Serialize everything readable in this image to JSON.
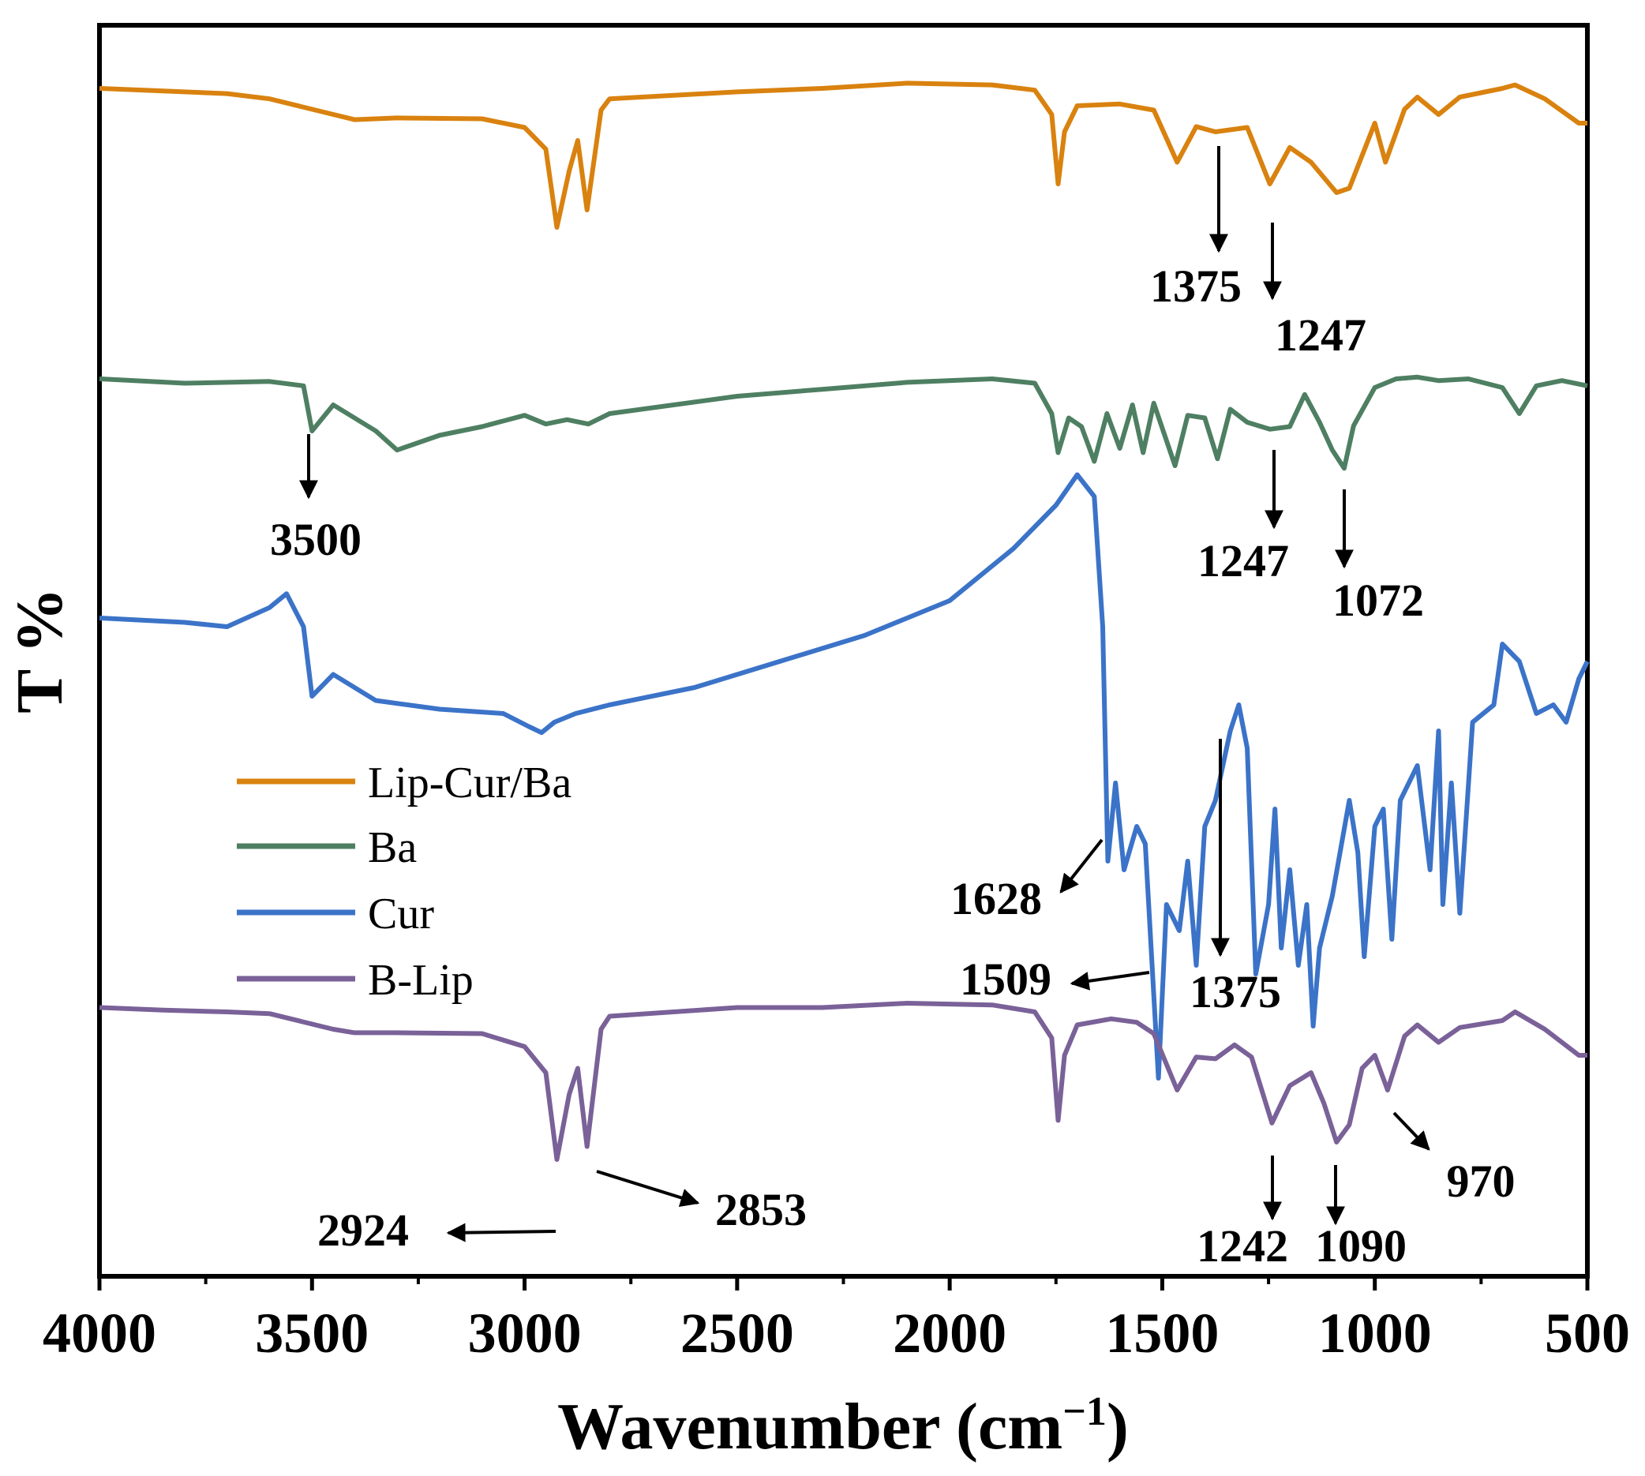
{
  "chart_data": {
    "type": "line",
    "title": "",
    "xlabel": "Wavenumber (cm",
    "xlabel_sup": "−1",
    "xlabel_close": ")",
    "ylabel": "T %",
    "xlim": [
      4000,
      500
    ],
    "x_ticks": [
      4000,
      3500,
      3000,
      2500,
      2000,
      1500,
      1000,
      500
    ],
    "grid": false,
    "legend_position": "middle-left",
    "series": [
      {
        "name": "Lip-Cur/Ba",
        "color": "#D9820F",
        "points": [
          [
            4000,
            80
          ],
          [
            3850,
            77
          ],
          [
            3700,
            74
          ],
          [
            3600,
            68
          ],
          [
            3450,
            50
          ],
          [
            3400,
            44
          ],
          [
            3300,
            46
          ],
          [
            3100,
            45
          ],
          [
            3000,
            35
          ],
          [
            2950,
            10
          ],
          [
            2924,
            -80
          ],
          [
            2895,
            -15
          ],
          [
            2875,
            20
          ],
          [
            2853,
            -60
          ],
          [
            2820,
            55
          ],
          [
            2800,
            68
          ],
          [
            2500,
            76
          ],
          [
            2300,
            80
          ],
          [
            2100,
            86
          ],
          [
            1900,
            84
          ],
          [
            1800,
            78
          ],
          [
            1760,
            50
          ],
          [
            1745,
            -30
          ],
          [
            1730,
            30
          ],
          [
            1700,
            60
          ],
          [
            1600,
            62
          ],
          [
            1520,
            55
          ],
          [
            1465,
            -5
          ],
          [
            1420,
            36
          ],
          [
            1375,
            30
          ],
          [
            1300,
            35
          ],
          [
            1247,
            -30
          ],
          [
            1200,
            12
          ],
          [
            1150,
            -5
          ],
          [
            1090,
            -40
          ],
          [
            1060,
            -35
          ],
          [
            1000,
            40
          ],
          [
            975,
            -5
          ],
          [
            930,
            56
          ],
          [
            900,
            70
          ],
          [
            850,
            50
          ],
          [
            800,
            70
          ],
          [
            700,
            80
          ],
          [
            670,
            84
          ],
          [
            600,
            68
          ],
          [
            520,
            40
          ],
          [
            500,
            40
          ]
        ]
      },
      {
        "name": "Ba",
        "color": "#4E7F62",
        "points": [
          [
            4000,
            100
          ],
          [
            3800,
            95
          ],
          [
            3600,
            97
          ],
          [
            3520,
            92
          ],
          [
            3500,
            40
          ],
          [
            3450,
            70
          ],
          [
            3350,
            40
          ],
          [
            3300,
            18
          ],
          [
            3200,
            35
          ],
          [
            3100,
            45
          ],
          [
            3000,
            58
          ],
          [
            2950,
            48
          ],
          [
            2900,
            53
          ],
          [
            2850,
            48
          ],
          [
            2800,
            60
          ],
          [
            2500,
            80
          ],
          [
            2300,
            88
          ],
          [
            2100,
            96
          ],
          [
            1900,
            100
          ],
          [
            1800,
            95
          ],
          [
            1760,
            60
          ],
          [
            1745,
            15
          ],
          [
            1720,
            55
          ],
          [
            1690,
            45
          ],
          [
            1660,
            5
          ],
          [
            1630,
            60
          ],
          [
            1600,
            20
          ],
          [
            1570,
            70
          ],
          [
            1545,
            15
          ],
          [
            1520,
            72
          ],
          [
            1470,
            0
          ],
          [
            1440,
            58
          ],
          [
            1400,
            55
          ],
          [
            1370,
            8
          ],
          [
            1340,
            65
          ],
          [
            1300,
            50
          ],
          [
            1247,
            42
          ],
          [
            1200,
            45
          ],
          [
            1165,
            82
          ],
          [
            1130,
            50
          ],
          [
            1100,
            18
          ],
          [
            1072,
            -3
          ],
          [
            1050,
            46
          ],
          [
            1000,
            90
          ],
          [
            950,
            100
          ],
          [
            900,
            102
          ],
          [
            850,
            98
          ],
          [
            780,
            100
          ],
          [
            700,
            90
          ],
          [
            660,
            60
          ],
          [
            620,
            92
          ],
          [
            560,
            98
          ],
          [
            500,
            92
          ]
        ]
      },
      {
        "name": "Cur",
        "color": "#3B73C8",
        "points": [
          [
            4000,
            70
          ],
          [
            3800,
            65
          ],
          [
            3700,
            60
          ],
          [
            3600,
            82
          ],
          [
            3560,
            98
          ],
          [
            3520,
            60
          ],
          [
            3500,
            -20
          ],
          [
            3450,
            5
          ],
          [
            3350,
            -25
          ],
          [
            3200,
            -35
          ],
          [
            3050,
            -40
          ],
          [
            2990,
            -55
          ],
          [
            2960,
            -62
          ],
          [
            2930,
            -50
          ],
          [
            2880,
            -40
          ],
          [
            2800,
            -30
          ],
          [
            2600,
            -10
          ],
          [
            2400,
            20
          ],
          [
            2200,
            50
          ],
          [
            2000,
            90
          ],
          [
            1850,
            150
          ],
          [
            1750,
            200
          ],
          [
            1700,
            235
          ],
          [
            1660,
            210
          ],
          [
            1640,
            60
          ],
          [
            1628,
            -210
          ],
          [
            1610,
            -120
          ],
          [
            1590,
            -220
          ],
          [
            1560,
            -170
          ],
          [
            1540,
            -190
          ],
          [
            1509,
            -460
          ],
          [
            1490,
            -260
          ],
          [
            1460,
            -290
          ],
          [
            1440,
            -210
          ],
          [
            1420,
            -330
          ],
          [
            1400,
            -170
          ],
          [
            1375,
            -140
          ],
          [
            1340,
            -60
          ],
          [
            1320,
            -30
          ],
          [
            1300,
            -80
          ],
          [
            1280,
            -340
          ],
          [
            1250,
            -260
          ],
          [
            1235,
            -150
          ],
          [
            1220,
            -310
          ],
          [
            1200,
            -220
          ],
          [
            1180,
            -330
          ],
          [
            1160,
            -260
          ],
          [
            1145,
            -400
          ],
          [
            1130,
            -310
          ],
          [
            1100,
            -250
          ],
          [
            1060,
            -140
          ],
          [
            1040,
            -200
          ],
          [
            1025,
            -320
          ],
          [
            1000,
            -170
          ],
          [
            980,
            -150
          ],
          [
            960,
            -300
          ],
          [
            940,
            -140
          ],
          [
            900,
            -100
          ],
          [
            870,
            -220
          ],
          [
            850,
            -60
          ],
          [
            840,
            -260
          ],
          [
            820,
            -120
          ],
          [
            800,
            -270
          ],
          [
            770,
            -50
          ],
          [
            720,
            -30
          ],
          [
            700,
            40
          ],
          [
            660,
            20
          ],
          [
            620,
            -40
          ],
          [
            580,
            -30
          ],
          [
            550,
            -50
          ],
          [
            520,
            0
          ],
          [
            500,
            20
          ]
        ]
      },
      {
        "name": "B-Lip",
        "color": "#7A6198",
        "points": [
          [
            4000,
            85
          ],
          [
            3850,
            82
          ],
          [
            3700,
            80
          ],
          [
            3600,
            78
          ],
          [
            3450,
            60
          ],
          [
            3400,
            56
          ],
          [
            3300,
            56
          ],
          [
            3100,
            55
          ],
          [
            3000,
            40
          ],
          [
            2950,
            10
          ],
          [
            2924,
            -90
          ],
          [
            2895,
            -15
          ],
          [
            2875,
            15
          ],
          [
            2853,
            -75
          ],
          [
            2820,
            60
          ],
          [
            2800,
            75
          ],
          [
            2500,
            85
          ],
          [
            2300,
            85
          ],
          [
            2100,
            90
          ],
          [
            1900,
            88
          ],
          [
            1800,
            80
          ],
          [
            1760,
            50
          ],
          [
            1745,
            -45
          ],
          [
            1730,
            30
          ],
          [
            1700,
            65
          ],
          [
            1620,
            72
          ],
          [
            1560,
            68
          ],
          [
            1520,
            55
          ],
          [
            1465,
            -10
          ],
          [
            1420,
            28
          ],
          [
            1375,
            26
          ],
          [
            1330,
            42
          ],
          [
            1290,
            28
          ],
          [
            1242,
            -48
          ],
          [
            1200,
            -5
          ],
          [
            1150,
            10
          ],
          [
            1120,
            -25
          ],
          [
            1090,
            -70
          ],
          [
            1060,
            -50
          ],
          [
            1030,
            15
          ],
          [
            1000,
            30
          ],
          [
            970,
            -10
          ],
          [
            930,
            52
          ],
          [
            900,
            65
          ],
          [
            850,
            45
          ],
          [
            800,
            62
          ],
          [
            700,
            70
          ],
          [
            670,
            80
          ],
          [
            600,
            60
          ],
          [
            520,
            30
          ],
          [
            500,
            30
          ]
        ]
      }
    ],
    "annotations": [
      {
        "series": "Lip-Cur/Ba",
        "label": "1375",
        "x": 1375
      },
      {
        "series": "Lip-Cur/Ba",
        "label": "1247",
        "x": 1247
      },
      {
        "series": "Ba",
        "label": "3500",
        "x": 3500
      },
      {
        "series": "Ba",
        "label": "1247",
        "x": 1247
      },
      {
        "series": "Ba",
        "label": "1072",
        "x": 1072
      },
      {
        "series": "Cur",
        "label": "1628",
        "x": 1628
      },
      {
        "series": "Cur",
        "label": "1509",
        "x": 1509
      },
      {
        "series": "Cur",
        "label": "1375",
        "x": 1375
      },
      {
        "series": "B-Lip",
        "label": "2924",
        "x": 2924
      },
      {
        "series": "B-Lip",
        "label": "2853",
        "x": 2853
      },
      {
        "series": "B-Lip",
        "label": "1242",
        "x": 1242
      },
      {
        "series": "B-Lip",
        "label": "1090",
        "x": 1090
      },
      {
        "series": "B-Lip",
        "label": "970",
        "x": 970
      }
    ]
  }
}
